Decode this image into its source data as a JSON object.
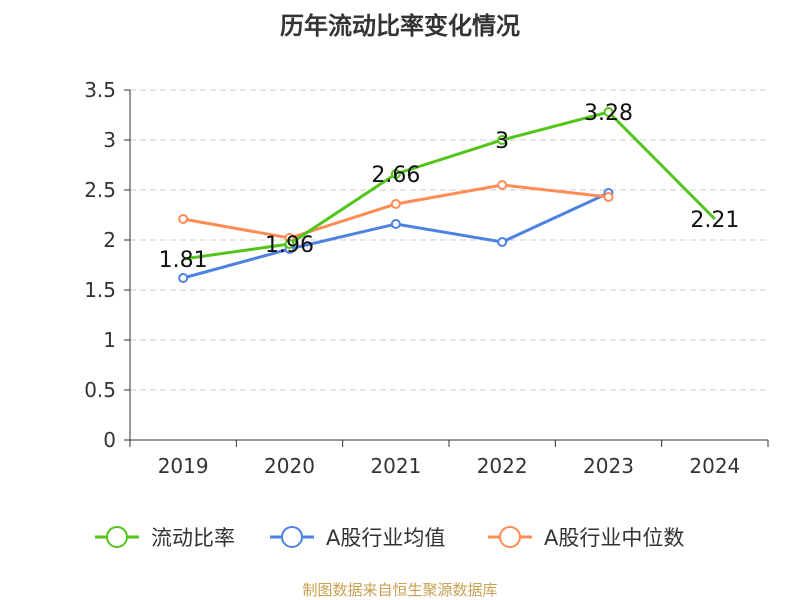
{
  "chart_data": {
    "type": "line",
    "title": "历年流动比率变化情况",
    "categories": [
      "2019",
      "2020",
      "2021",
      "2022",
      "2023",
      "2024"
    ],
    "ylim": [
      0,
      3.5
    ],
    "yticks": [
      "0",
      "0.5",
      "1",
      "1.5",
      "2",
      "2.5",
      "3",
      "3.5"
    ],
    "grid": true,
    "legend_position": "bottom",
    "series": [
      {
        "name": "流动比率",
        "color": "#52c41a",
        "values": [
          1.81,
          1.96,
          2.66,
          3,
          3.28,
          2.21
        ],
        "labels": [
          "1.81",
          "1.96",
          "2.66",
          "3",
          "3.28",
          "2.21"
        ]
      },
      {
        "name": "A股行业均值",
        "color": "#4e82e0",
        "values": [
          1.62,
          1.91,
          2.16,
          1.98,
          2.47,
          null
        ]
      },
      {
        "name": "A股行业中位数",
        "color": "#ff8c55",
        "values": [
          2.21,
          2.02,
          2.36,
          2.55,
          2.43,
          null
        ]
      }
    ]
  },
  "footer": {
    "source": "制图数据来自恒生聚源数据库"
  }
}
